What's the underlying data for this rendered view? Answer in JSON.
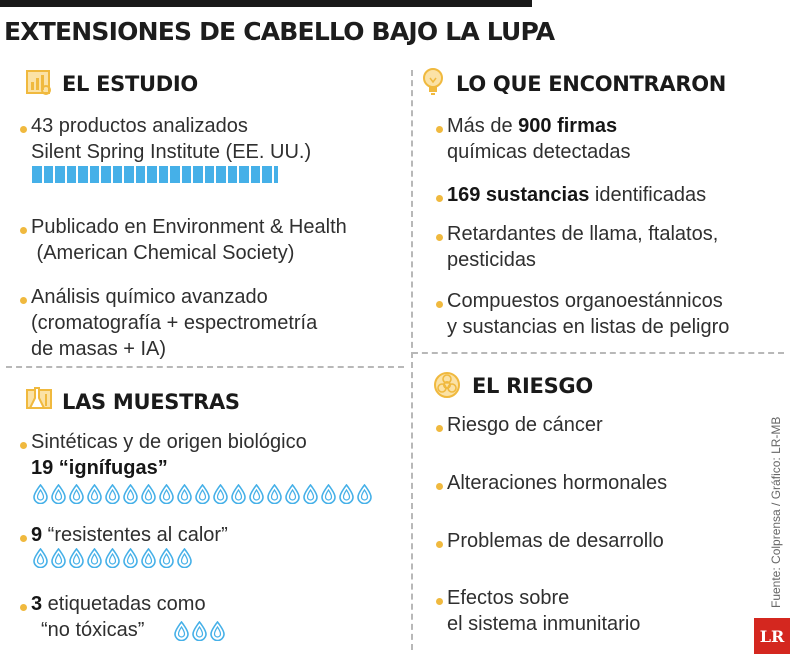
{
  "title": "EXTENSIONES DE CABELLO BAJO LA LUPA",
  "sections": {
    "estudio": {
      "heading": "EL ESTUDIO",
      "icon": "chart-clipboard-icon",
      "items": [
        {
          "lines": [
            "43 productos analizados",
            "Silent Spring Institute (EE. UU.)"
          ]
        },
        {
          "lines": [
            "Publicado en Environment & Health",
            " (American Chemical Society)"
          ]
        },
        {
          "lines": [
            "Análisis químico avanzado",
            "(cromatografía + espectrometría",
            "de masas + IA)"
          ]
        }
      ],
      "products_count": 43
    },
    "encontraron": {
      "heading": "LO QUE ENCONTRARON",
      "icon": "lightbulb-icon",
      "item1_pre": "Más de ",
      "item1_bold": "900 firmas",
      "item1_line2": "químicas detectadas",
      "item2_bold": "169 sustancias",
      "item2_post": " identificadas",
      "item3_lines": [
        "Retardantes de llama, ftalatos,",
        "pesticidas"
      ],
      "item4_lines": [
        "Compuestos organoestánnicos",
        "y sustancias en listas de peligro"
      ]
    },
    "muestras": {
      "heading": "LAS MUESTRAS",
      "icon": "lab-flask-icon",
      "item1_line1": "Sintéticas y de origen biológico",
      "item1_bold": "19 “ignífugas”",
      "ignifugas_count": 19,
      "item2_bold": "9",
      "item2_post": " “resistentes al calor”",
      "resistentes_count": 9,
      "item3_bold": "3",
      "item3_post": " etiquetadas como",
      "item3_line2": "“no tóxicas”",
      "no_toxicas_count": 3
    },
    "riesgo": {
      "heading": "EL RIESGO",
      "icon": "biohazard-icon",
      "items": [
        "Riesgo de cáncer",
        "Alteraciones hormonales",
        "Problemas de desarrollo"
      ],
      "item4_lines": [
        "Efectos sobre",
        "el sistema inmunitario"
      ]
    }
  },
  "source": "Fuente: Colprensa / Gráfico: LR-MB",
  "logo": "LR",
  "colors": {
    "bullet": "#f0b93e",
    "accent_blue": "#45b0e8",
    "logo_red": "#d4271f"
  }
}
